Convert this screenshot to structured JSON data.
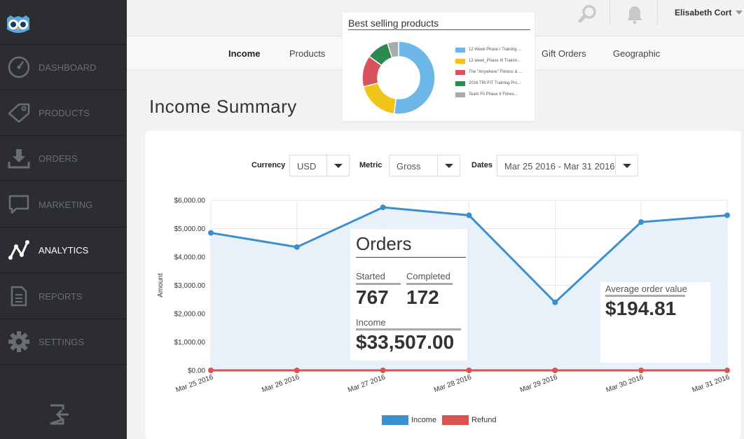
{
  "user": {
    "name": "Elisabeth Cort"
  },
  "sidebar": {
    "items": [
      {
        "label": "DASHBOARD",
        "icon": "gauge-icon"
      },
      {
        "label": "PRODUCTS",
        "icon": "tag-icon"
      },
      {
        "label": "ORDERS",
        "icon": "download-icon"
      },
      {
        "label": "MARKETING",
        "icon": "chat-bubble-icon"
      },
      {
        "label": "ANALYTICS",
        "icon": "analytics-icon",
        "active": true
      },
      {
        "label": "REPORTS",
        "icon": "document-icon"
      },
      {
        "label": "SETTINGS",
        "icon": "gear-icon"
      }
    ]
  },
  "tabs": [
    "Income",
    "Products",
    "Gift Orders",
    "Geographic"
  ],
  "page_title": "Income Summary",
  "best_selling": {
    "title": "Best selling products",
    "items": [
      {
        "label": "12 Week Phase I Training ...",
        "color": "#6cb6e8",
        "value": 52
      },
      {
        "label": "12 week_Phase III Trainin...",
        "color": "#f0c419",
        "value": 19
      },
      {
        "label": "The \"Anywhere\" Fitness & ...",
        "color": "#d9535f",
        "value": 14
      },
      {
        "label": "2016 TRI-FIT Training Pro...",
        "color": "#2a8a4f",
        "value": 10
      },
      {
        "label": "Team Fit  Phase II Fitnes...",
        "color": "#a6acac",
        "value": 5
      }
    ]
  },
  "filters": {
    "currency_label": "Currency",
    "currency_value": "USD",
    "metric_label": "Metric",
    "metric_value": "Gross",
    "dates_label": "Dates",
    "dates_value": "Mar 25 2016 - Mar 31 2016"
  },
  "orders": {
    "title": "Orders",
    "started_label": "Started",
    "started_value": "767",
    "completed_label": "Completed",
    "completed_value": "172",
    "income_label": "Income",
    "income_value": "$33,507.00"
  },
  "avg_order": {
    "label": "Average order value",
    "value": "$194.81"
  },
  "colors": {
    "income": "#3a8fd0",
    "refund": "#d9534f",
    "sidebar": "#2b2d30"
  },
  "chart_data": {
    "type": "line",
    "x": [
      "Mar 25 2016",
      "Mar 26 2016",
      "Mar 27 2016",
      "Mar 28 2016",
      "Mar 29 2016",
      "Mar 30 2016",
      "Mar 31 2016"
    ],
    "series": [
      {
        "name": "Income",
        "values": [
          4850,
          4350,
          5750,
          5470,
          2400,
          5230,
          5470
        ]
      },
      {
        "name": "Refund",
        "values": [
          0,
          0,
          0,
          0,
          0,
          0,
          0
        ]
      }
    ],
    "yticks": [
      "$0.00",
      "$1,000.00",
      "$2,000.00",
      "$3,000.00",
      "$4,000.00",
      "$5,000.00",
      "$6,000.00"
    ],
    "ylabel": "Amount",
    "ylim": [
      0,
      6000
    ],
    "grid": true,
    "legend": "bottom-center"
  }
}
